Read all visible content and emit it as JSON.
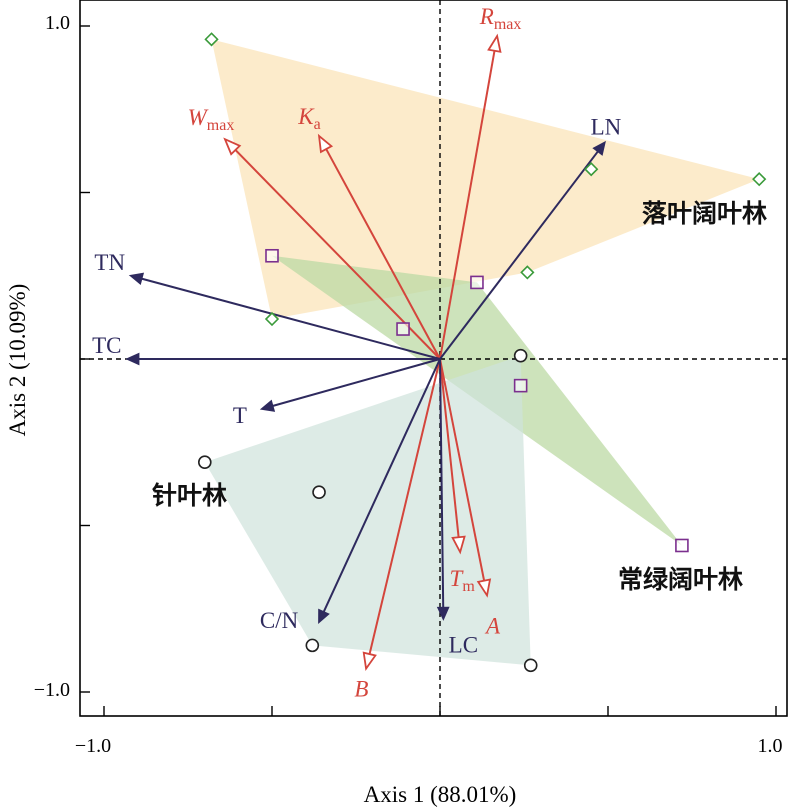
{
  "chart_data": {
    "type": "scatter",
    "subtype": "PCA biplot",
    "xlabel": "Axis 1 (88.01%)",
    "ylabel": "Axis 2 (10.09%)",
    "xlim": [
      -1.05,
      1.05
    ],
    "ylim": [
      -1.05,
      1.05
    ],
    "x_tick_labels": [
      "−1.0",
      "1.0"
    ],
    "y_tick_labels": [
      "1.0",
      "−1.0"
    ],
    "x_ticks": [
      -1.0,
      -0.5,
      0,
      0.5,
      1.0
    ],
    "y_ticks": [
      1.0,
      0.5,
      0,
      -0.5,
      -1.0
    ],
    "zero_lines": "dashed",
    "groups": [
      {
        "label": "落叶阔叶林",
        "marker": "diamond",
        "color": "#3a9a3a",
        "hull_color": "#fce8c2",
        "points": [
          [
            -0.68,
            0.96
          ],
          [
            -0.5,
            0.12
          ],
          [
            0.26,
            0.26
          ],
          [
            0.45,
            0.57
          ],
          [
            0.95,
            0.54
          ]
        ]
      },
      {
        "label": "常绿阔叶林",
        "marker": "square",
        "color": "#7b2f8e",
        "hull_color": "#bcd9a4",
        "points": [
          [
            -0.5,
            0.31
          ],
          [
            -0.11,
            0.09
          ],
          [
            0.11,
            0.23
          ],
          [
            0.24,
            -0.08
          ],
          [
            0.72,
            -0.56
          ]
        ]
      },
      {
        "label": "针叶林",
        "marker": "circle",
        "color": "#222222",
        "hull_color": "#cfe3dc",
        "points": [
          [
            -0.7,
            -0.31
          ],
          [
            -0.36,
            -0.4
          ],
          [
            -0.38,
            -0.86
          ],
          [
            0.24,
            0.01
          ],
          [
            0.27,
            -0.92
          ]
        ]
      }
    ],
    "vectors": [
      {
        "name": "R",
        "sub": "max",
        "x": 0.17,
        "y": 0.97,
        "italic": true,
        "color": "#d4453c",
        "group": "response"
      },
      {
        "name": "W",
        "sub": "max",
        "x": -0.64,
        "y": 0.66,
        "italic": true,
        "color": "#d4453c",
        "group": "response"
      },
      {
        "name": "K",
        "sub": "a",
        "x": -0.36,
        "y": 0.67,
        "italic": true,
        "color": "#d4453c",
        "group": "response"
      },
      {
        "name": "T",
        "sub": "m",
        "x": 0.06,
        "y": -0.58,
        "italic": true,
        "color": "#d4453c",
        "group": "response"
      },
      {
        "name": "A",
        "sub": "",
        "x": 0.14,
        "y": -0.71,
        "italic": true,
        "color": "#d4453c",
        "group": "response"
      },
      {
        "name": "B",
        "sub": "",
        "x": -0.22,
        "y": -0.93,
        "italic": true,
        "color": "#d4453c",
        "group": "response"
      },
      {
        "name": "LN",
        "sub": "",
        "x": 0.49,
        "y": 0.65,
        "italic": false,
        "color": "#2e2a5e",
        "group": "explanatory"
      },
      {
        "name": "TN",
        "sub": "",
        "x": -0.92,
        "y": 0.25,
        "italic": false,
        "color": "#2e2a5e",
        "group": "explanatory"
      },
      {
        "name": "TC",
        "sub": "",
        "x": -0.93,
        "y": 0.0,
        "italic": false,
        "color": "#2e2a5e",
        "group": "explanatory"
      },
      {
        "name": "T",
        "sub": "",
        "x": -0.53,
        "y": -0.15,
        "italic": false,
        "color": "#2e2a5e",
        "group": "explanatory"
      },
      {
        "name": "C/N",
        "sub": "",
        "x": -0.36,
        "y": -0.79,
        "italic": false,
        "color": "#2e2a5e",
        "group": "explanatory"
      },
      {
        "name": "LC",
        "sub": "",
        "x": 0.01,
        "y": -0.78,
        "italic": false,
        "color": "#2e2a5e",
        "group": "explanatory"
      }
    ]
  }
}
